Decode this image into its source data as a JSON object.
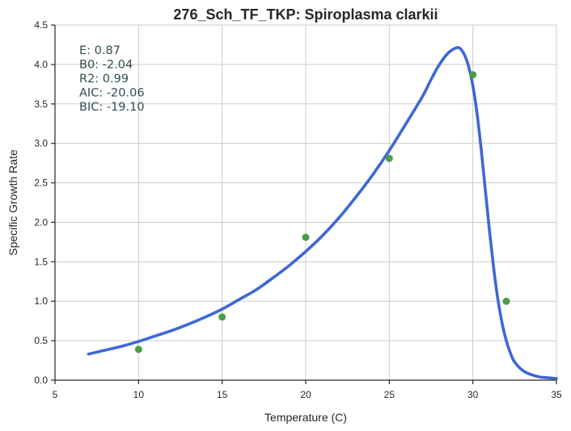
{
  "chart_data": {
    "type": "scatter",
    "title": "276_Sch_TF_TKP: Spiroplasma clarkii",
    "xlabel": "Temperature (C)",
    "ylabel": "Specific Growth Rate",
    "xlim": [
      5,
      35
    ],
    "ylim": [
      0,
      4.5
    ],
    "xticks": [
      5,
      10,
      15,
      20,
      25,
      30,
      35
    ],
    "yticks": [
      0.0,
      0.5,
      1.0,
      1.5,
      2.0,
      2.5,
      3.0,
      3.5,
      4.0,
      4.5
    ],
    "xtick_labels": [
      "5",
      "10",
      "15",
      "20",
      "25",
      "30",
      "35"
    ],
    "ytick_labels": [
      "0.0",
      "0.5",
      "1.0",
      "1.5",
      "2.0",
      "2.5",
      "3.0",
      "3.5",
      "4.0",
      "4.5"
    ],
    "grid": true,
    "series": [
      {
        "type": "scatter",
        "color": "#4a9e46",
        "x": [
          10,
          15,
          20,
          25,
          30,
          32
        ],
        "y": [
          0.39,
          0.8,
          1.81,
          2.81,
          3.87,
          1.0
        ]
      },
      {
        "type": "line",
        "color": "#3e67d6",
        "x": [
          7,
          8,
          9,
          10,
          11,
          12,
          13,
          14,
          15,
          16,
          17,
          18,
          19,
          20,
          21,
          22,
          23,
          24,
          25,
          26,
          27,
          27.5,
          28,
          28.5,
          29,
          29.25,
          29.5,
          29.75,
          30,
          30.25,
          30.5,
          30.75,
          31,
          31.25,
          31.5,
          31.75,
          32,
          32.25,
          32.5,
          33,
          33.5,
          34,
          34.5,
          35
        ],
        "y": [
          0.33,
          0.38,
          0.43,
          0.49,
          0.56,
          0.63,
          0.71,
          0.8,
          0.9,
          1.02,
          1.14,
          1.29,
          1.45,
          1.63,
          1.83,
          2.06,
          2.32,
          2.6,
          2.91,
          3.25,
          3.6,
          3.81,
          4.0,
          4.14,
          4.21,
          4.2,
          4.12,
          3.97,
          3.73,
          3.38,
          2.92,
          2.4,
          1.88,
          1.41,
          1.02,
          0.72,
          0.5,
          0.34,
          0.23,
          0.12,
          0.07,
          0.04,
          0.03,
          0.02
        ]
      }
    ],
    "annotation": {
      "color": "#2f4f4f",
      "lines": [
        "E:  0.87",
        "B0:  -2.04",
        "R2:  0.99",
        "AIC: -20.06",
        "BIC: -19.10"
      ]
    }
  }
}
